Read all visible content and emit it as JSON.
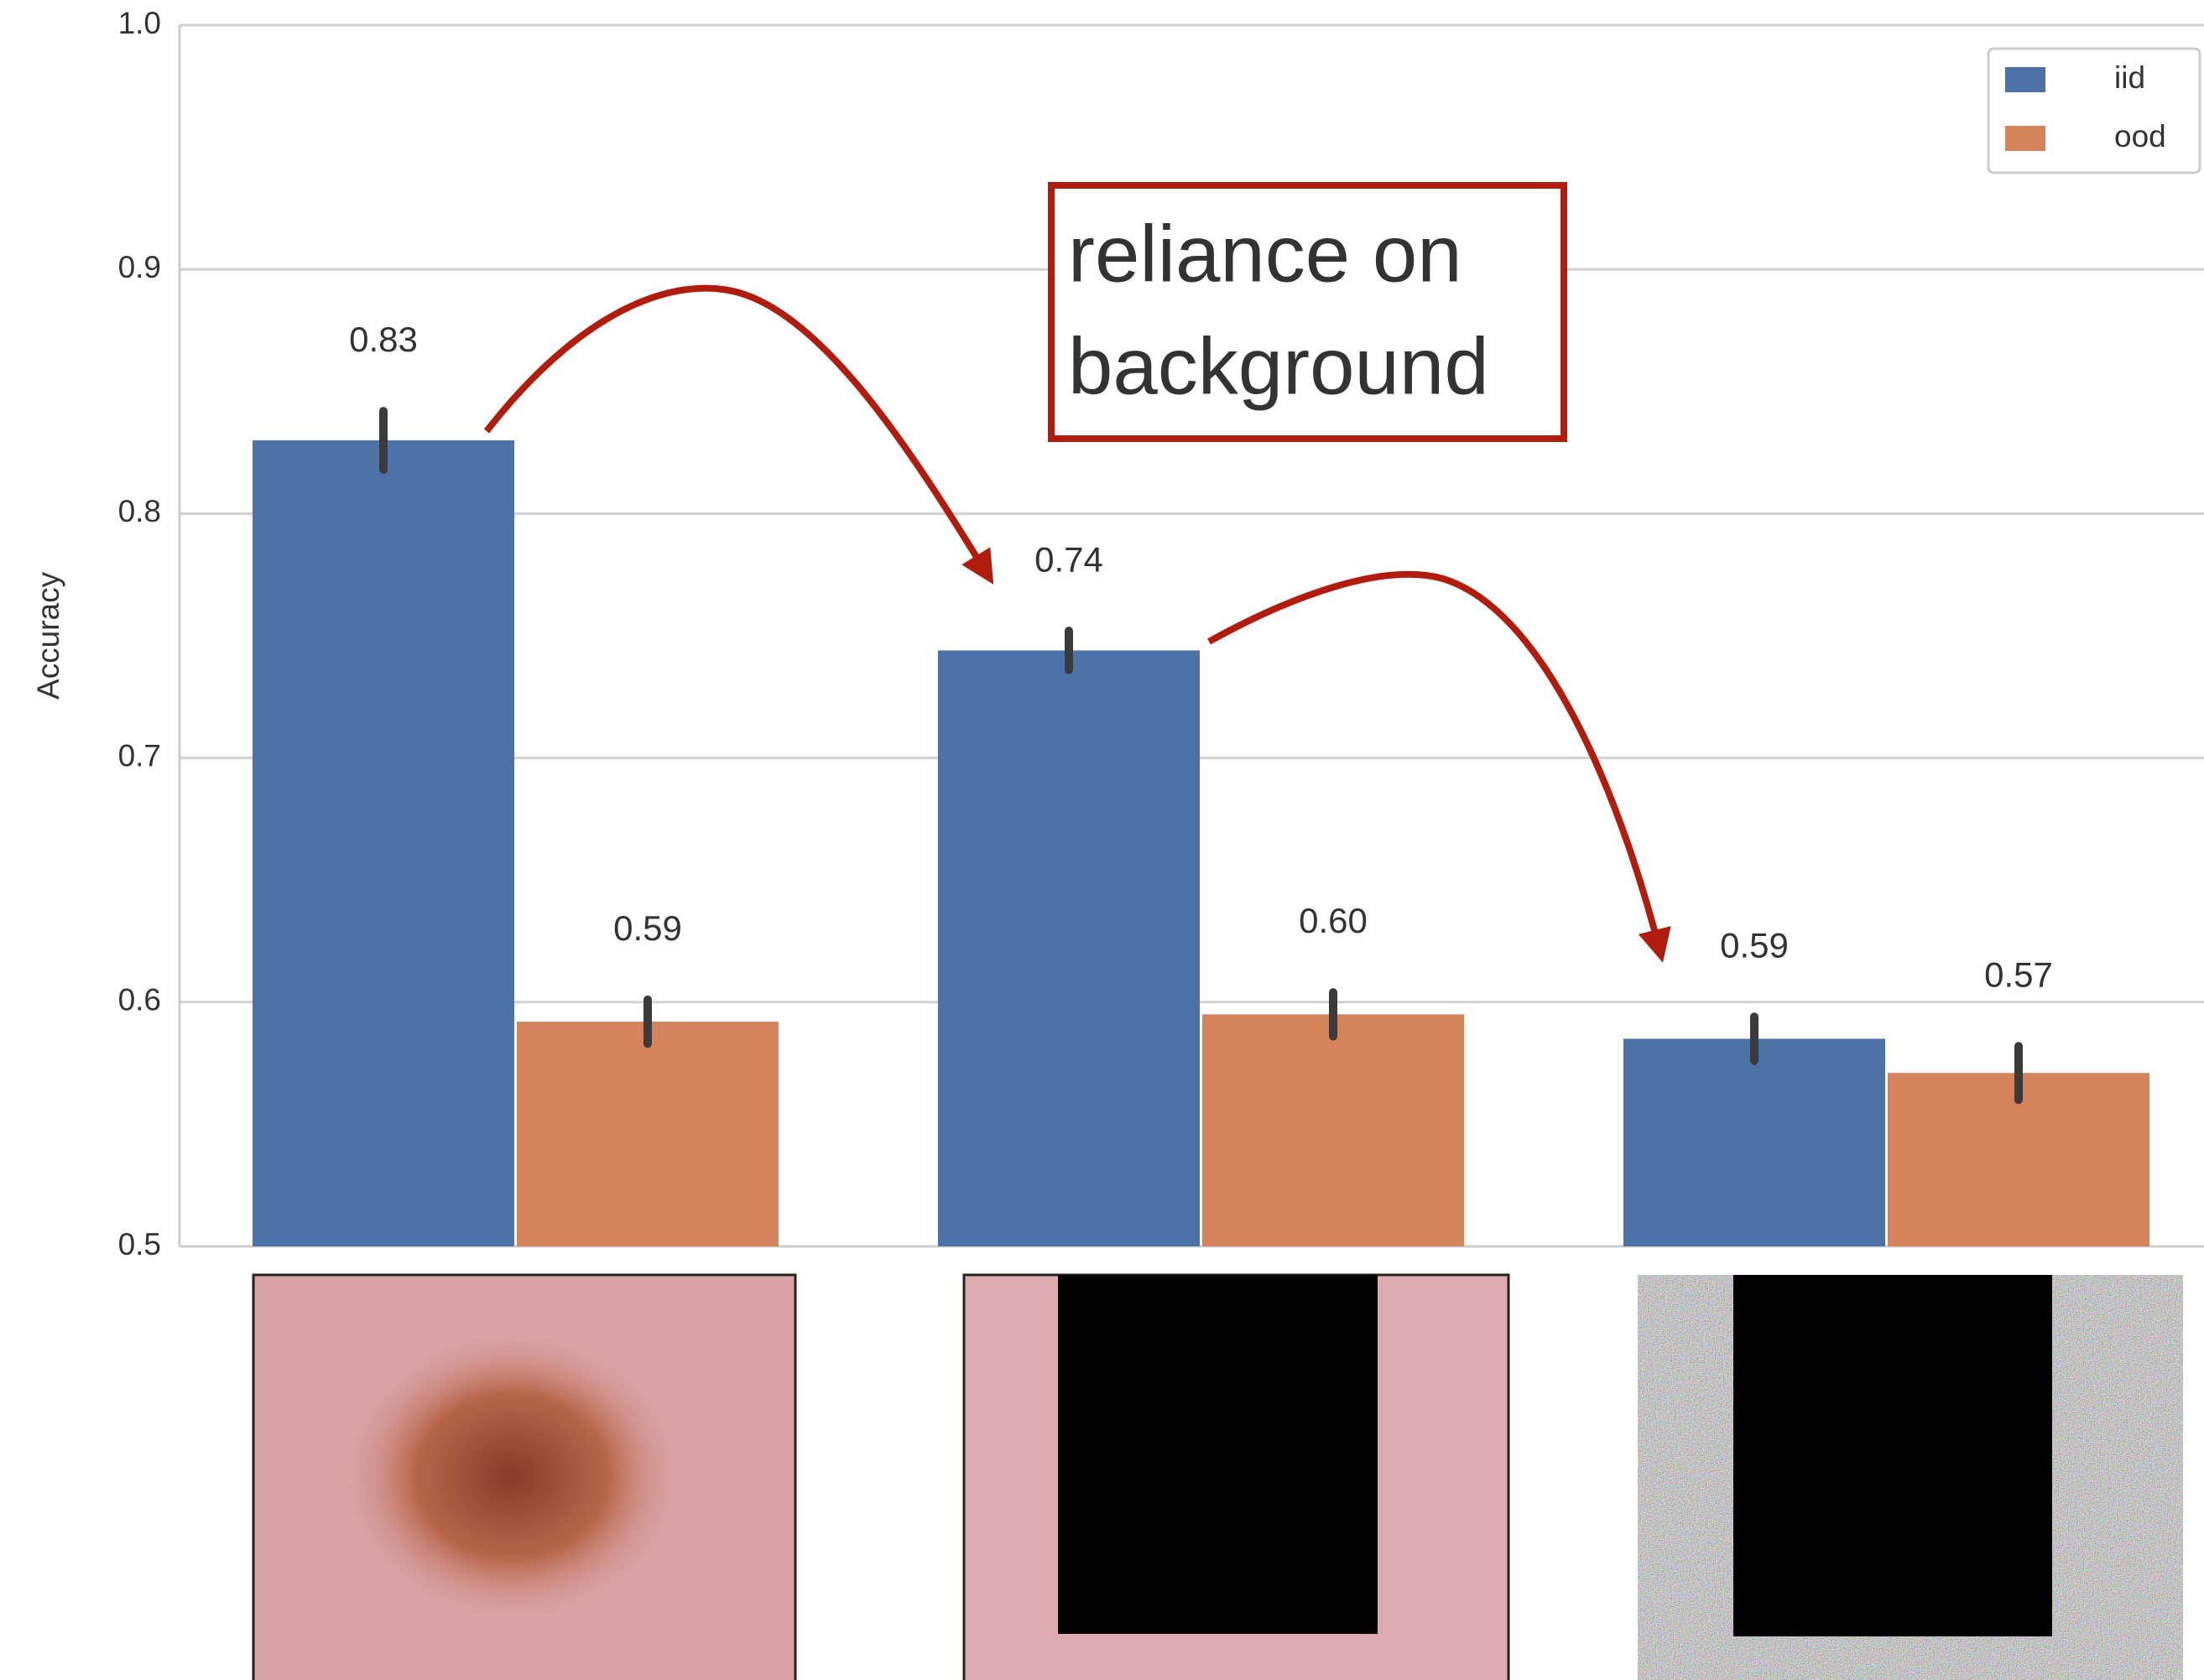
{
  "chart_data": {
    "type": "bar",
    "y_label": "Accuracy",
    "categories": [
      null,
      null,
      null
    ],
    "series": [
      {
        "name": "iid",
        "color": "#4c72a8",
        "values": [
          0.83,
          0.744,
          0.585
        ],
        "errors": [
          0.012,
          0.008,
          0.009
        ],
        "value_labels": [
          "0.83",
          "0.74",
          "0.59"
        ]
      },
      {
        "name": "ood",
        "color": "#d5835a",
        "values": [
          0.592,
          0.595,
          0.571
        ],
        "errors": [
          0.009,
          0.009,
          0.011
        ],
        "value_labels": [
          "0.59",
          "0.60",
          "0.57"
        ]
      }
    ],
    "ylim": [
      0.5,
      1.0
    ],
    "yticks": [
      0.5,
      0.6,
      0.7,
      0.8,
      0.9,
      {
        "value": 1.0,
        "label": "1.0"
      }
    ],
    "grid": true,
    "legend": "upper right",
    "annotation": [
      "reliance on",
      "background"
    ]
  }
}
